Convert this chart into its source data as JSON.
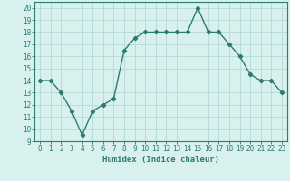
{
  "x": [
    0,
    1,
    2,
    3,
    4,
    5,
    6,
    7,
    8,
    9,
    10,
    11,
    12,
    13,
    14,
    15,
    16,
    17,
    18,
    19,
    20,
    21,
    22,
    23
  ],
  "y": [
    14,
    14,
    13,
    11.5,
    9.5,
    11.5,
    12,
    12.5,
    16.5,
    17.5,
    18,
    18,
    18,
    18,
    18,
    20,
    18,
    18,
    17,
    16,
    14.5,
    14,
    14,
    13
  ],
  "line_color": "#2d7d6e",
  "marker": "D",
  "marker_size": 2.2,
  "bg_color": "#d8f0ee",
  "grid_color": "#b8ddd8",
  "xlabel": "Humidex (Indice chaleur)",
  "xlim": [
    -0.5,
    23.5
  ],
  "ylim": [
    9,
    20.5
  ],
  "yticks": [
    9,
    10,
    11,
    12,
    13,
    14,
    15,
    16,
    17,
    18,
    19,
    20
  ],
  "xticks": [
    0,
    1,
    2,
    3,
    4,
    5,
    6,
    7,
    8,
    9,
    10,
    11,
    12,
    13,
    14,
    15,
    16,
    17,
    18,
    19,
    20,
    21,
    22,
    23
  ],
  "tick_labelsize": 5.5,
  "xlabel_fontsize": 6.5,
  "line_width": 1.0
}
